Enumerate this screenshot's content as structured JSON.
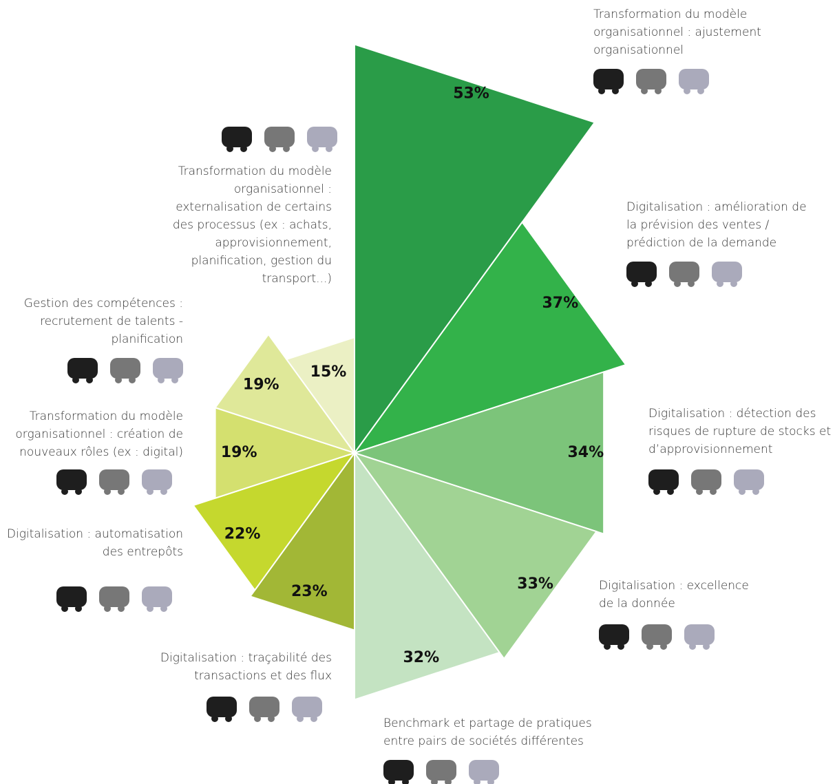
{
  "chart_data": {
    "type": "polar-area",
    "categories": [
      "Transformation du modèle organisationnel : ajustement organisationnel",
      "Digitalisation : amélioration de la prévision des ventes / prédiction de la demande",
      "Digitalisation : détection des risques de rupture de stocks et d’approvisionnement",
      "Digitalisation : excellence de la donnée",
      "Benchmark et partage de pratiques entre pairs de sociétés différentes",
      "Digitalisation : traçabilité des transactions et des flux",
      "Digitalisation : automatisation des entrepôts",
      "Transformation du modèle organisationnel : création de nouveaux rôles (ex : digital)",
      "Gestion des compétences : recrutement de talents - planification",
      "Transformation du modèle organisationnel : externalisation de certains des processus (ex : achats, approvisionnement, planification, gestion du transport...)"
    ],
    "values": [
      53,
      37,
      34,
      33,
      32,
      23,
      22,
      19,
      19,
      15
    ],
    "value_labels": [
      "53%",
      "37%",
      "34%",
      "33%",
      "32%",
      "23%",
      "22%",
      "19%",
      "19%",
      "15%"
    ],
    "colors": [
      "#2a9c48",
      "#33b24a",
      "#7cc47a",
      "#a1d394",
      "#c4e3c2",
      "#a2b736",
      "#c5d82e",
      "#d4e06f",
      "#dfe899",
      "#ebf0c4"
    ]
  }
}
